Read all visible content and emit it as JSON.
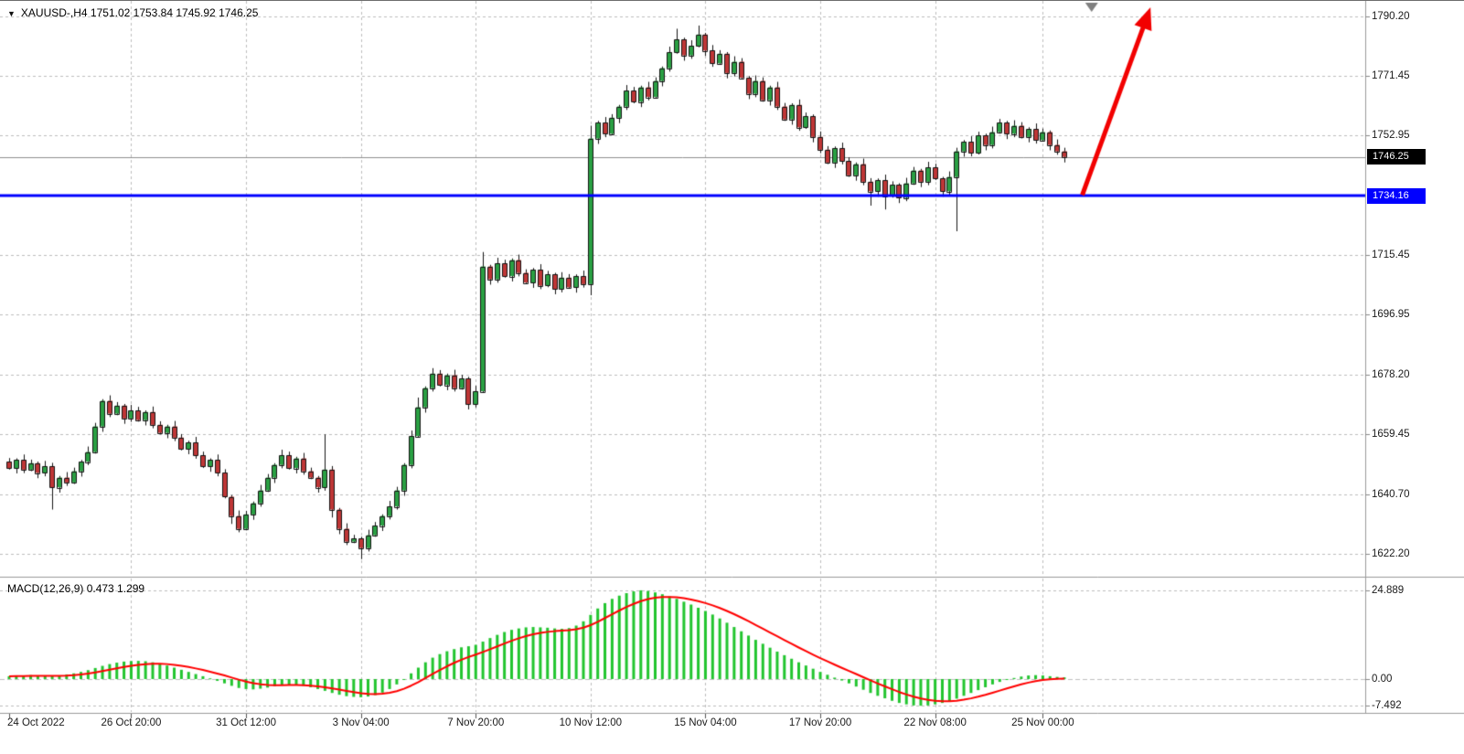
{
  "window": {
    "app": "trading-chart",
    "bg": "#ffffff"
  },
  "symbol_bar": {
    "expander_icon": "▼",
    "display": "XAUUSD-,H4 1751.02 1753.84 1745.92 1746.25",
    "symbol": "XAUUSD-",
    "timeframe": "H4",
    "open": "1751.02",
    "high": "1753.84",
    "low": "1745.92",
    "close": "1746.25"
  },
  "indicator_label": "MACD(12,26,9) 0.473 1.299",
  "price_axis": {
    "plain_labels": [
      "1790.20",
      "1771.45",
      "1752.95",
      "1715.45",
      "1696.95",
      "1678.20",
      "1659.45",
      "1640.70",
      "1622.20"
    ],
    "current_badge": {
      "value": "1746.25",
      "bg": "#000000",
      "fg": "#ffffff"
    },
    "line_badge": {
      "value": "1734.16",
      "bg": "#0000ff",
      "fg": "#ffffff"
    }
  },
  "macd_axis": {
    "labels": [
      "24.889",
      "0.00",
      "-7.492"
    ]
  },
  "time_axis": {
    "ticks": [
      {
        "label": "24 Oct 2022",
        "bar": 0
      },
      {
        "label": "26 Oct 20:00",
        "bar": 17
      },
      {
        "label": "31 Oct 12:00",
        "bar": 33
      },
      {
        "label": "3 Nov 04:00",
        "bar": 49
      },
      {
        "label": "7 Nov 20:00",
        "bar": 65
      },
      {
        "label": "10 Nov 12:00",
        "bar": 81
      },
      {
        "label": "15 Nov 04:00",
        "bar": 97
      },
      {
        "label": "17 Nov 20:00",
        "bar": 113
      },
      {
        "label": "22 Nov 08:00",
        "bar": 129
      },
      {
        "label": "25 Nov 00:00",
        "bar": 144
      }
    ]
  },
  "chart_data": {
    "type": "candlestick",
    "title": "XAUUSD- H4 with MACD(12,26,9) and support line at 1734.16",
    "symbol": "XAUUSD-",
    "timeframe": "H4",
    "ylim": [
      1615,
      1795
    ],
    "price_gridlines": [
      1790.2,
      1771.45,
      1752.95,
      1715.45,
      1696.95,
      1678.2,
      1659.45,
      1640.7,
      1622.2
    ],
    "current_price": 1746.25,
    "support_line": {
      "value": 1734.16,
      "color": "#0000ff"
    },
    "annotation_arrow": {
      "type": "up-arrow",
      "color": "#f20000",
      "from_bar": 149.5,
      "from_price": 1734.3,
      "to_bar": 159,
      "to_price": 1793
    },
    "shift_marker": {
      "shape": "down-triangle",
      "color": "#808080",
      "bar": 150.8
    },
    "candles": {
      "first_open": 1651.0,
      "closes": [
        1649,
        1651.5,
        1648.5,
        1650.5,
        1647.5,
        1649.5,
        1643,
        1646,
        1644.5,
        1648,
        1651,
        1654,
        1662,
        1670,
        1666,
        1668.5,
        1664.5,
        1667,
        1664,
        1666.5,
        1662.5,
        1660,
        1662,
        1658.5,
        1655,
        1657,
        1653,
        1649.5,
        1651.5,
        1647.5,
        1640,
        1634,
        1630,
        1634.5,
        1638,
        1642,
        1646,
        1650,
        1653,
        1649,
        1652,
        1648,
        1646,
        1643,
        1648.5,
        1636,
        1630,
        1626,
        1627,
        1624,
        1628,
        1631,
        1634,
        1637,
        1642,
        1650,
        1659,
        1668,
        1674,
        1678.5,
        1675,
        1678,
        1674,
        1677,
        1669,
        1673,
        1712,
        1708,
        1713,
        1709,
        1714,
        1710,
        1707,
        1711,
        1706,
        1709.5,
        1705,
        1708.5,
        1705.5,
        1709,
        1706.5,
        1752,
        1757,
        1753.5,
        1758.5,
        1762,
        1767,
        1763.5,
        1768,
        1765,
        1770,
        1774,
        1779,
        1783,
        1778,
        1781,
        1784.5,
        1779.5,
        1775.5,
        1778.5,
        1772.5,
        1776,
        1771,
        1766,
        1770,
        1764,
        1768,
        1762,
        1758,
        1762.5,
        1755.5,
        1759,
        1752.5,
        1748.5,
        1744.5,
        1749,
        1745,
        1740.5,
        1744,
        1738.5,
        1735.5,
        1739,
        1734,
        1737.5,
        1733.5,
        1738,
        1742,
        1738.5,
        1743,
        1739.5,
        1735.5,
        1740,
        1748,
        1751,
        1747.5,
        1753,
        1750,
        1754,
        1757,
        1753.5,
        1756,
        1752.5,
        1755,
        1751.5,
        1754,
        1750,
        1748,
        1746.25
      ],
      "wick_pattern": [
        1.1,
        0.5,
        1.7
      ],
      "wick_overrides": {
        "6": {
          "low": 1636
        },
        "31": {
          "low": 1631.5
        },
        "44": {
          "high": 1659.5
        },
        "45": {
          "low": 1633.5
        },
        "49": {
          "low": 1620.5
        },
        "54": {
          "low": 1636
        },
        "57": {
          "high": 1671
        },
        "66": {
          "high": 1716.5
        },
        "81": {
          "high": 1756,
          "low": 1703
        },
        "93": {
          "high": 1786.3
        },
        "96": {
          "high": 1787.3
        },
        "120": {
          "low": 1731
        },
        "122": {
          "low": 1729.8
        },
        "132": {
          "low": 1723
        },
        "147": {
          "low": 1744.5
        }
      }
    },
    "macd": {
      "params": "12,26,9",
      "value": 0.473,
      "signal": 1.299,
      "signal_period": 9,
      "ylim": [
        -9.3,
        28.2
      ],
      "gridlines": [
        24.889,
        0,
        -7.492
      ],
      "colors": {
        "histogram": "#22c52f",
        "signal": "#ff0000"
      },
      "histogram": [
        0.8,
        1.0,
        0.9,
        1.1,
        1.0,
        0.9,
        0.8,
        1.0,
        1.3,
        1.6,
        2.0,
        2.5,
        3.1,
        3.7,
        4.2,
        4.6,
        4.9,
        5.05,
        5.1,
        5.0,
        4.7,
        4.3,
        3.8,
        3.2,
        2.6,
        2.0,
        1.4,
        0.8,
        0.2,
        -0.5,
        -1.2,
        -1.9,
        -2.5,
        -2.8,
        -2.9,
        -2.7,
        -2.4,
        -2.0,
        -1.7,
        -1.6,
        -1.7,
        -1.9,
        -2.3,
        -2.8,
        -3.3,
        -3.9,
        -4.4,
        -4.8,
        -5.0,
        -5.1,
        -4.9,
        -4.5,
        -3.8,
        -2.8,
        -1.5,
        0.0,
        1.6,
        3.2,
        4.7,
        6.0,
        7.0,
        7.8,
        8.4,
        8.9,
        9.2,
        9.6,
        10.5,
        11.5,
        12.4,
        13.2,
        13.8,
        14.2,
        14.5,
        14.6,
        14.5,
        14.4,
        14.2,
        14.1,
        14.3,
        15.0,
        16.2,
        18.0,
        19.8,
        21.3,
        22.5,
        23.4,
        24.1,
        24.6,
        24.889,
        24.7,
        24.3,
        23.8,
        23.2,
        22.5,
        21.7,
        20.9,
        20.0,
        19.1,
        18.1,
        17.0,
        15.8,
        14.6,
        13.4,
        12.2,
        11.0,
        9.9,
        8.8,
        7.7,
        6.7,
        5.7,
        4.7,
        3.8,
        2.9,
        2.0,
        1.2,
        0.4,
        -0.4,
        -1.2,
        -2.1,
        -3.0,
        -3.9,
        -4.7,
        -5.4,
        -6.1,
        -6.7,
        -7.1,
        -7.4,
        -7.492,
        -7.4,
        -7.1,
        -6.7,
        -6.2,
        -5.5,
        -4.7,
        -3.9,
        -3.1,
        -2.3,
        -1.5,
        -0.8,
        -0.2,
        0.3,
        0.7,
        1.0,
        1.1,
        1.0,
        0.8,
        0.6,
        0.473
      ]
    },
    "colors": {
      "up": "#2aa043",
      "down": "#bf3636",
      "outline": "#141414",
      "grid": "#bdbdbd",
      "zero_line": "#c0c0c0",
      "price_line": "#8f8f8f",
      "separator": "#9a9a9a"
    }
  }
}
